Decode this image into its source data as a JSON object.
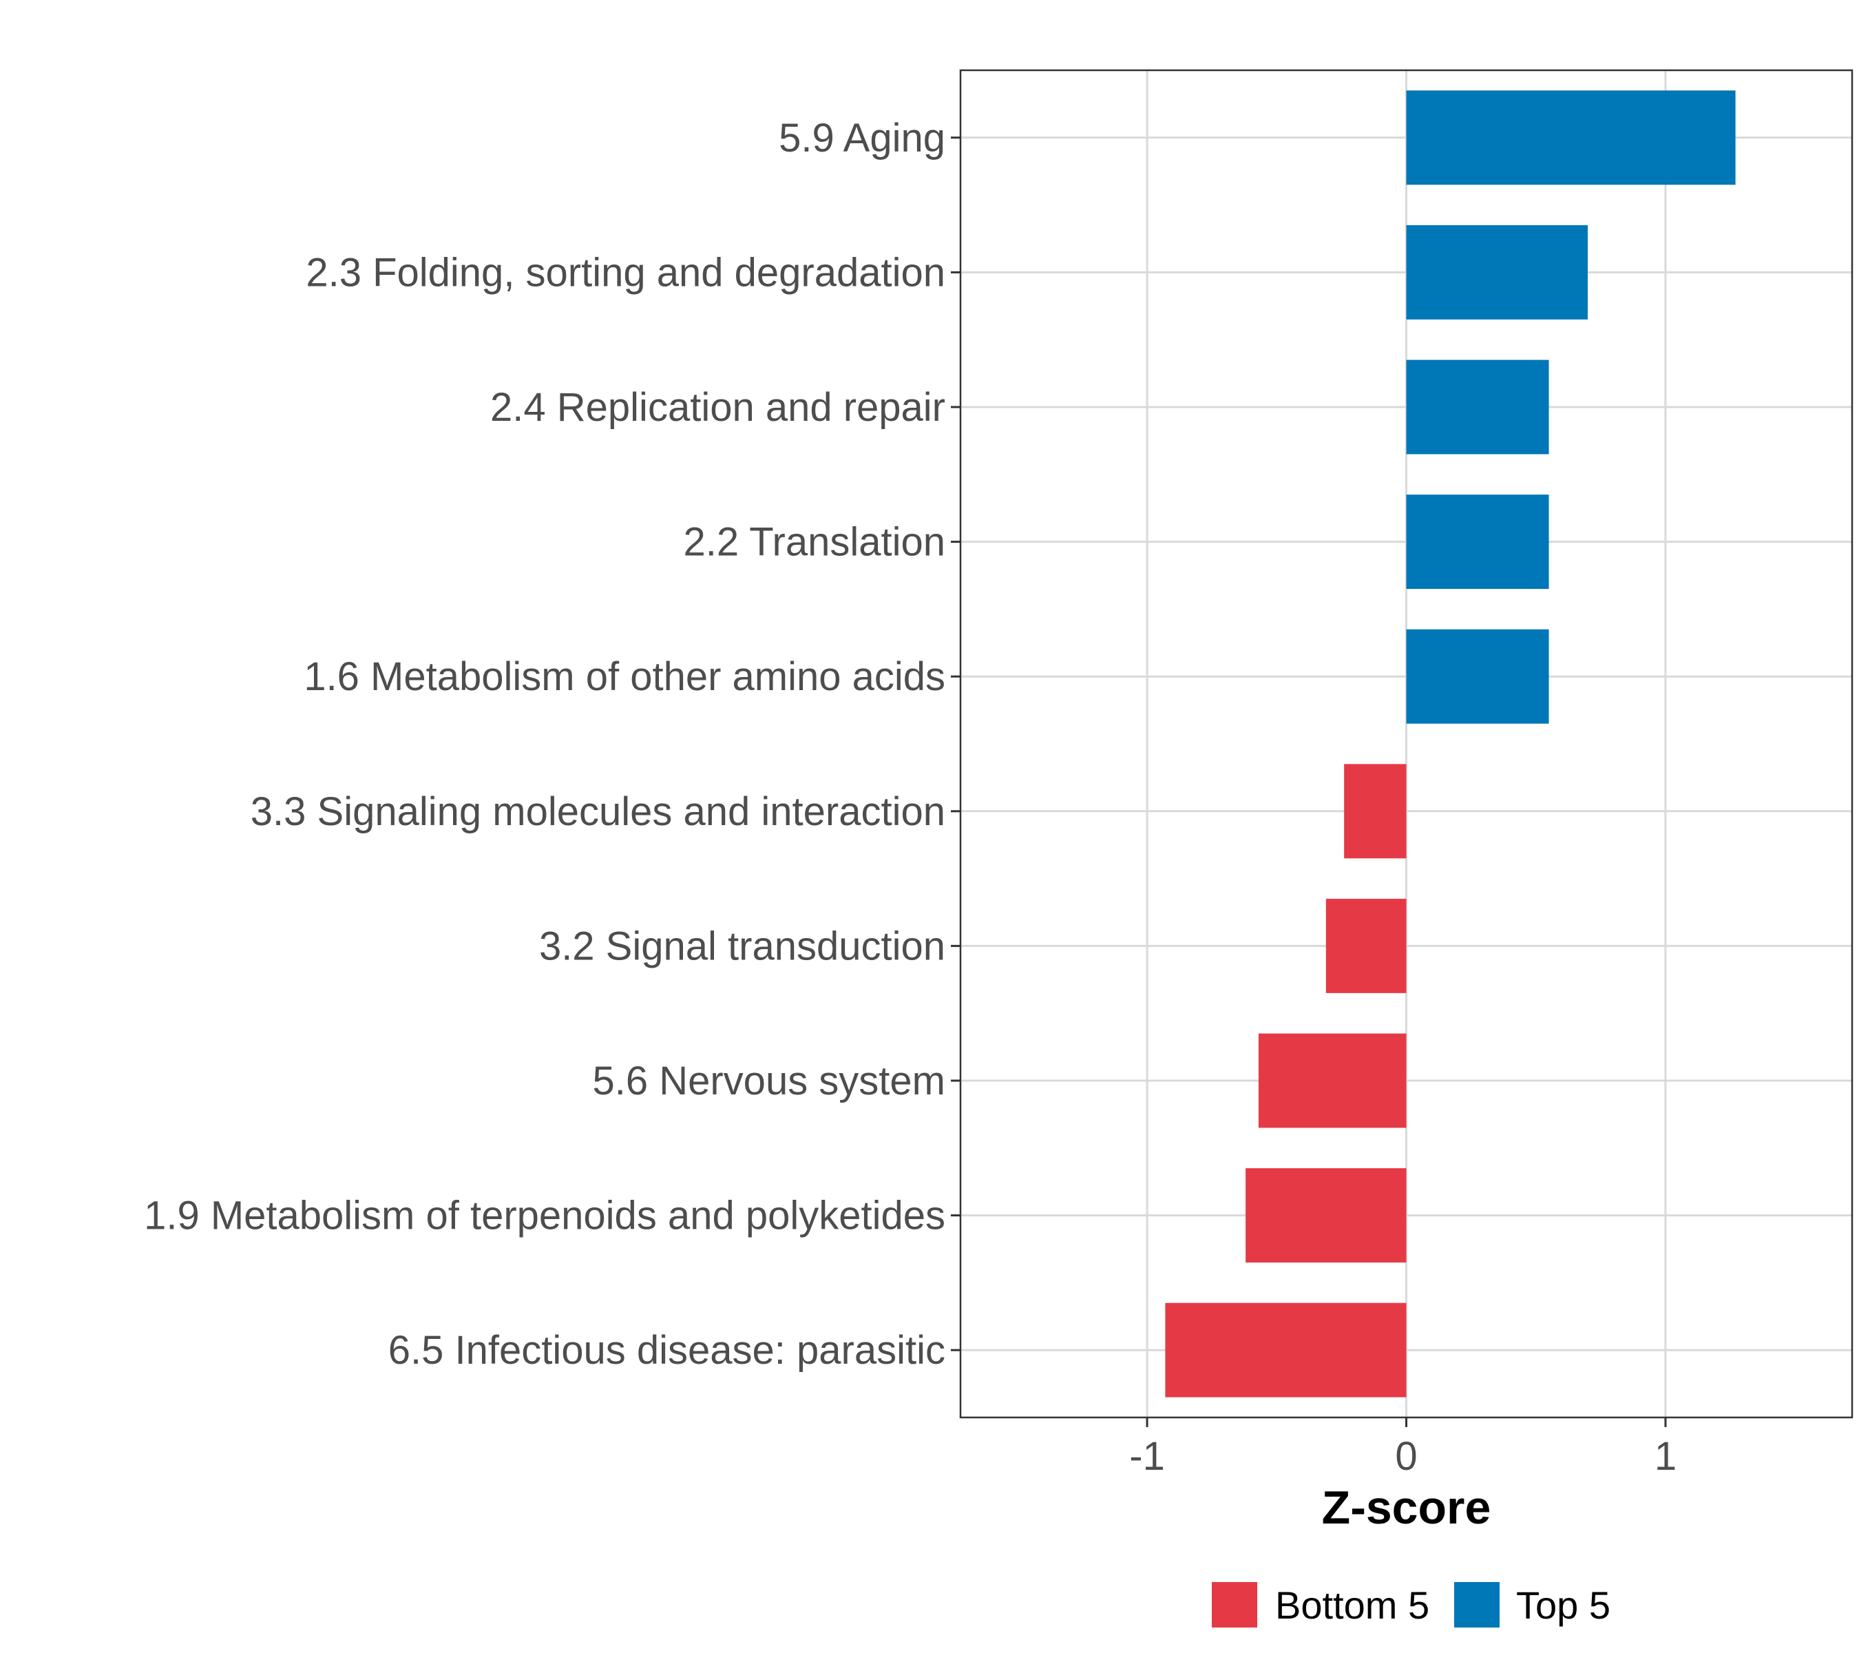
{
  "chart_data": {
    "type": "bar",
    "orientation": "horizontal",
    "title": "",
    "xlabel": "Z-score",
    "ylabel": "",
    "xlim": [
      -1.72,
      1.72
    ],
    "xticks": [
      -1,
      0,
      1
    ],
    "xtick_labels": [
      "-1",
      "0",
      "1"
    ],
    "grid": true,
    "legend_position": "bottom",
    "categories": [
      "5.9 Aging",
      "2.3 Folding, sorting and degradation",
      "2.4 Replication and repair",
      "2.2 Translation",
      "1.6 Metabolism of other amino acids",
      "3.3 Signaling molecules and interaction",
      "3.2 Signal transduction",
      "5.6 Nervous system",
      "1.9 Metabolism of terpenoids and polyketides",
      "6.5 Infectious disease: parasitic"
    ],
    "values": [
      1.27,
      0.7,
      0.55,
      0.55,
      0.55,
      -0.24,
      -0.31,
      -0.57,
      -0.62,
      -0.93
    ],
    "groups": [
      "Top 5",
      "Top 5",
      "Top 5",
      "Top 5",
      "Top 5",
      "Bottom 5",
      "Bottom 5",
      "Bottom 5",
      "Bottom 5",
      "Bottom 5"
    ],
    "legend": [
      {
        "name": "Bottom 5",
        "color": "#E63946"
      },
      {
        "name": "Top 5",
        "color": "#0077B6"
      }
    ],
    "colors": {
      "Bottom 5": "#E63946",
      "Top 5": "#0077B6",
      "grid": "#d9d9d9",
      "panel_border": "#333333",
      "label_text": "#4d4d4d"
    }
  }
}
